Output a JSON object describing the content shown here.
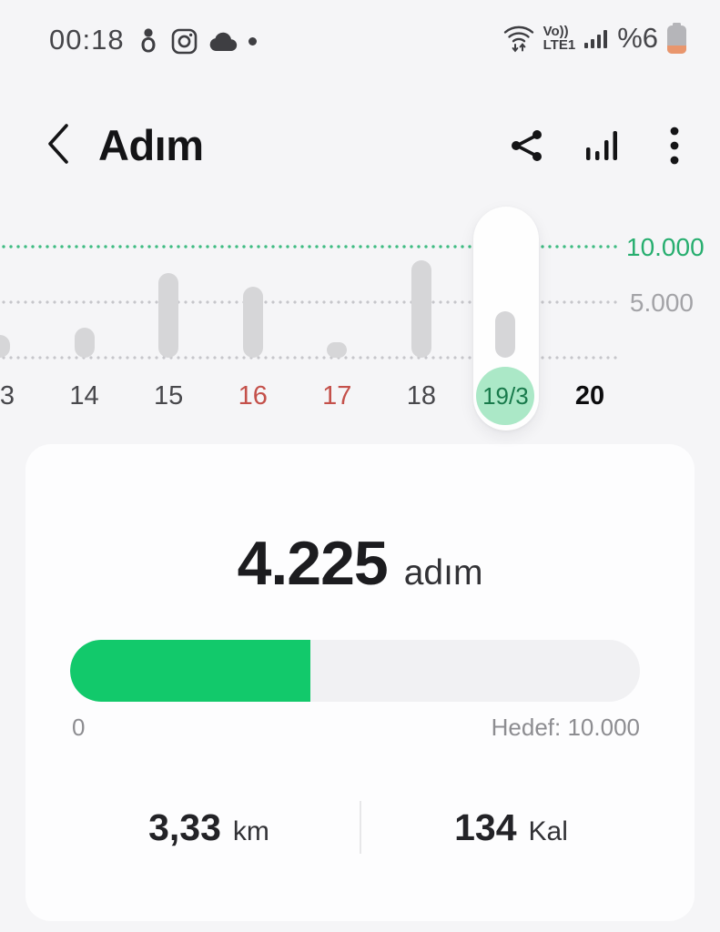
{
  "status_bar": {
    "time": "00:18",
    "left_icons": [
      "person-icon",
      "instagram-icon",
      "cloud-icon",
      "notification-dot"
    ],
    "network": {
      "volte_top": "Vo))",
      "volte_bottom": "LTE1"
    },
    "battery_text": "%6"
  },
  "header": {
    "title": "Adım",
    "actions": [
      "share-icon",
      "trends-chart-icon",
      "more-menu-icon"
    ]
  },
  "chart_data": {
    "type": "bar",
    "title": "Daily steps by day (Samsung Health)",
    "categories": [
      "3",
      "14",
      "15",
      "16",
      "17",
      "18",
      "19/3",
      "20"
    ],
    "values": [
      2100,
      2700,
      7700,
      6450,
      1400,
      8850,
      4225,
      0
    ],
    "label_styles": [
      "default",
      "default",
      "default",
      "red",
      "red",
      "default",
      "selected",
      "today"
    ],
    "selected_index": 6,
    "selected_label": "19/3",
    "goal_value": 10000,
    "ylim": [
      0,
      10000
    ],
    "grid": "dotted horizontal lines at 0, 5000 and 10000",
    "legend": "none",
    "y_ticks": [
      {
        "label": "10.000",
        "value": 10000,
        "color": "#27ae6f"
      },
      {
        "label": "5.000",
        "value": 5000,
        "color": "#a3a3a7"
      }
    ]
  },
  "summary": {
    "steps_value": "4.225",
    "steps_unit": "adım",
    "progress": {
      "current": 4225,
      "goal": 10000,
      "min_label": "0",
      "goal_label": "Hedef: 10.000"
    },
    "stats": [
      {
        "value": "3,33",
        "unit": "km"
      },
      {
        "value": "134",
        "unit": "Kal"
      }
    ]
  },
  "colors": {
    "background": "#f5f5f7",
    "card": "#fdfdfe",
    "accent_green": "#12c96b",
    "goal_line_green": "#3fbc82",
    "selected_circle_bg": "#abe8c7",
    "selected_circle_text": "#187a4b",
    "bar_gray": "#d6d6d8",
    "weekend_red": "#c4504a",
    "battery_low_orange": "#e9966d"
  }
}
